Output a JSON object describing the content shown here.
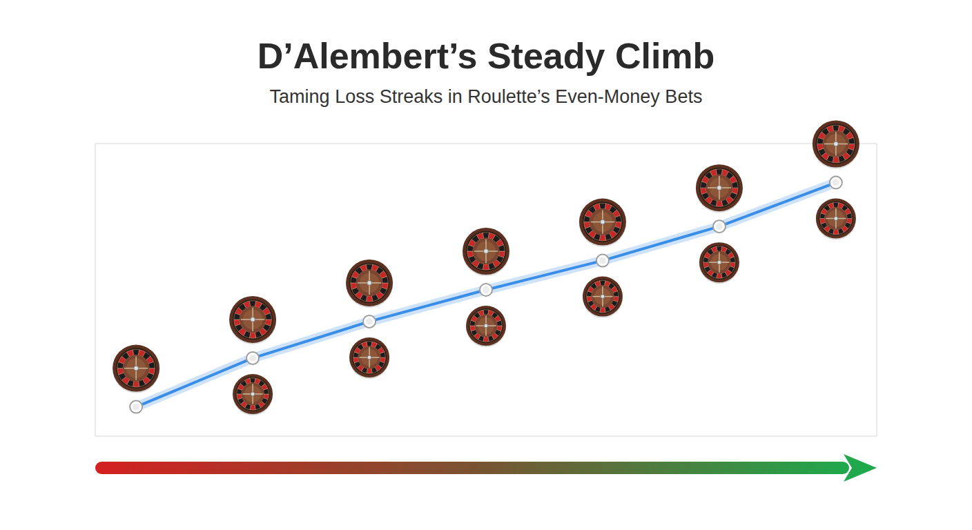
{
  "chart_data": {
    "type": "line",
    "title": "D’Alembert’s Steady Climb",
    "subtitle": "Taming Loss Streaks in Roulette’s Even-Money Bets",
    "x": [
      0,
      1,
      2,
      3,
      4,
      5,
      6
    ],
    "values": [
      0.6,
      1.6,
      2.35,
      3.0,
      3.6,
      4.3,
      5.2
    ],
    "color": "#3b8ee8",
    "marker": "circle",
    "xlim": [
      -0.35,
      6.35
    ],
    "xticks": [
      0,
      0.5,
      1,
      1.5,
      2,
      2.5,
      3,
      3.5,
      4,
      4.5,
      5,
      5.5,
      6
    ],
    "ylim": [
      0,
      6
    ],
    "yticks": [
      0,
      1,
      2,
      3,
      4,
      5,
      6
    ],
    "grid": true,
    "tick_labels": false
  }
}
